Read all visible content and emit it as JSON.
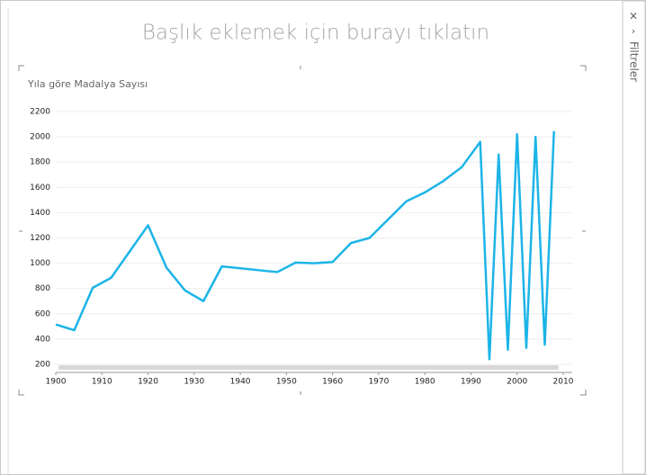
{
  "title_placeholder": "Başlık eklemek için burayı tıklatın",
  "filter_pane": {
    "label": "Filtreler"
  },
  "chart_data": {
    "type": "line",
    "title": "Yıla göre Madalya Sayısı",
    "x": [
      1900,
      1904,
      1908,
      1912,
      1920,
      1924,
      1928,
      1932,
      1936,
      1948,
      1952,
      1956,
      1960,
      1964,
      1968,
      1972,
      1976,
      1980,
      1984,
      1988,
      1992,
      1994,
      1996,
      1998,
      2000,
      2002,
      2004,
      2006,
      2008
    ],
    "series": [
      {
        "name": "Madalya Sayısı",
        "color": "#1cb4e8",
        "values": [
          515,
          470,
          805,
          885,
          1300,
          965,
          785,
          700,
          975,
          930,
          1005,
          1000,
          1010,
          1160,
          1200,
          1345,
          1490,
          1560,
          1650,
          1760,
          1960,
          240,
          1860,
          315,
          2020,
          330,
          2000,
          355,
          2045
        ]
      }
    ],
    "xlim": [
      1900,
      2010
    ],
    "xticks": [
      1900,
      1910,
      1920,
      1930,
      1940,
      1950,
      1960,
      1970,
      1980,
      1990,
      2000,
      2010
    ],
    "ylim": [
      200,
      2200
    ],
    "yticks": [
      200,
      400,
      600,
      800,
      1000,
      1200,
      1400,
      1600,
      1800,
      2000,
      2200
    ],
    "grid": true
  }
}
